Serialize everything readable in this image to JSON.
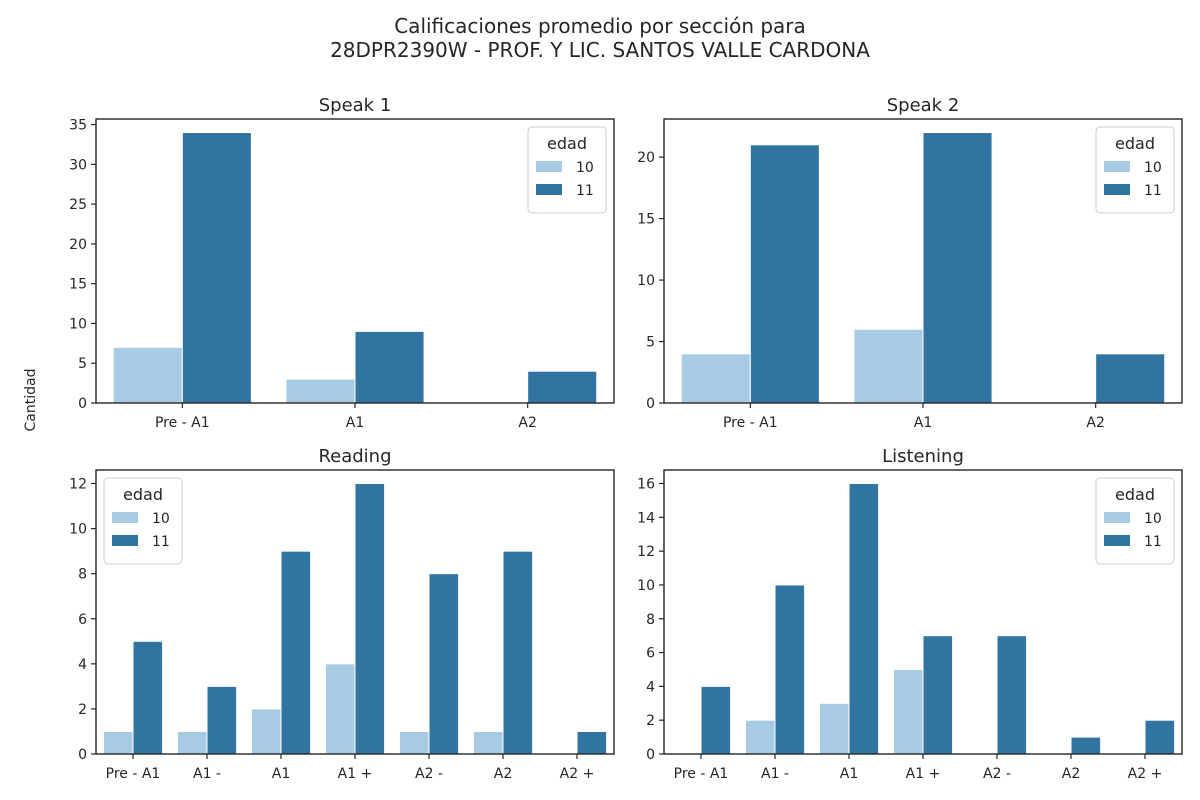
{
  "figure": {
    "title_line1": "Calificaciones promedio por sección para",
    "title_line2": "28DPR2390W - PROF. Y LIC. SANTOS VALLE CARDONA",
    "ylabel": "Cantidad"
  },
  "colors": {
    "edad_10": "#a6cbe2",
    "edad_11": "#3274a1"
  },
  "chart_data": [
    {
      "type": "bar",
      "title": "Speak 1",
      "categories": [
        "Pre - A1",
        "A1",
        "A2"
      ],
      "series": [
        {
          "name": "10",
          "values": [
            7,
            3,
            0
          ]
        },
        {
          "name": "11",
          "values": [
            34,
            9,
            4
          ]
        }
      ],
      "ylim": [
        0,
        35.7
      ],
      "yticks": [
        0,
        5,
        10,
        15,
        20,
        25,
        30,
        35
      ],
      "legend": {
        "title": "edad",
        "position": "top-right"
      },
      "grid": false
    },
    {
      "type": "bar",
      "title": "Speak 2",
      "categories": [
        "Pre - A1",
        "A1",
        "A2"
      ],
      "series": [
        {
          "name": "10",
          "values": [
            4,
            6,
            0
          ]
        },
        {
          "name": "11",
          "values": [
            21,
            22,
            4
          ]
        }
      ],
      "ylim": [
        0,
        23.1
      ],
      "yticks": [
        0,
        5,
        10,
        15,
        20
      ],
      "legend": {
        "title": "edad",
        "position": "top-right"
      },
      "grid": false
    },
    {
      "type": "bar",
      "title": "Reading",
      "categories": [
        "Pre - A1",
        "A1 -",
        "A1",
        "A1 +",
        "A2 -",
        "A2",
        "A2 +"
      ],
      "series": [
        {
          "name": "10",
          "values": [
            1,
            1,
            2,
            4,
            1,
            1,
            0
          ]
        },
        {
          "name": "11",
          "values": [
            5,
            3,
            9,
            12,
            8,
            9,
            1
          ]
        }
      ],
      "ylim": [
        0,
        12.6
      ],
      "yticks": [
        0,
        2,
        4,
        6,
        8,
        10,
        12
      ],
      "legend": {
        "title": "edad",
        "position": "top-left"
      },
      "grid": false
    },
    {
      "type": "bar",
      "title": "Listening",
      "categories": [
        "Pre - A1",
        "A1 -",
        "A1",
        "A1 +",
        "A2 -",
        "A2",
        "A2 +"
      ],
      "series": [
        {
          "name": "10",
          "values": [
            0,
            2,
            3,
            5,
            0,
            0,
            0
          ]
        },
        {
          "name": "11",
          "values": [
            4,
            10,
            16,
            7,
            7,
            1,
            2
          ]
        }
      ],
      "ylim": [
        0,
        16.8
      ],
      "yticks": [
        0,
        2,
        4,
        6,
        8,
        10,
        12,
        14,
        16
      ],
      "legend": {
        "title": "edad",
        "position": "top-right"
      },
      "grid": false
    }
  ]
}
